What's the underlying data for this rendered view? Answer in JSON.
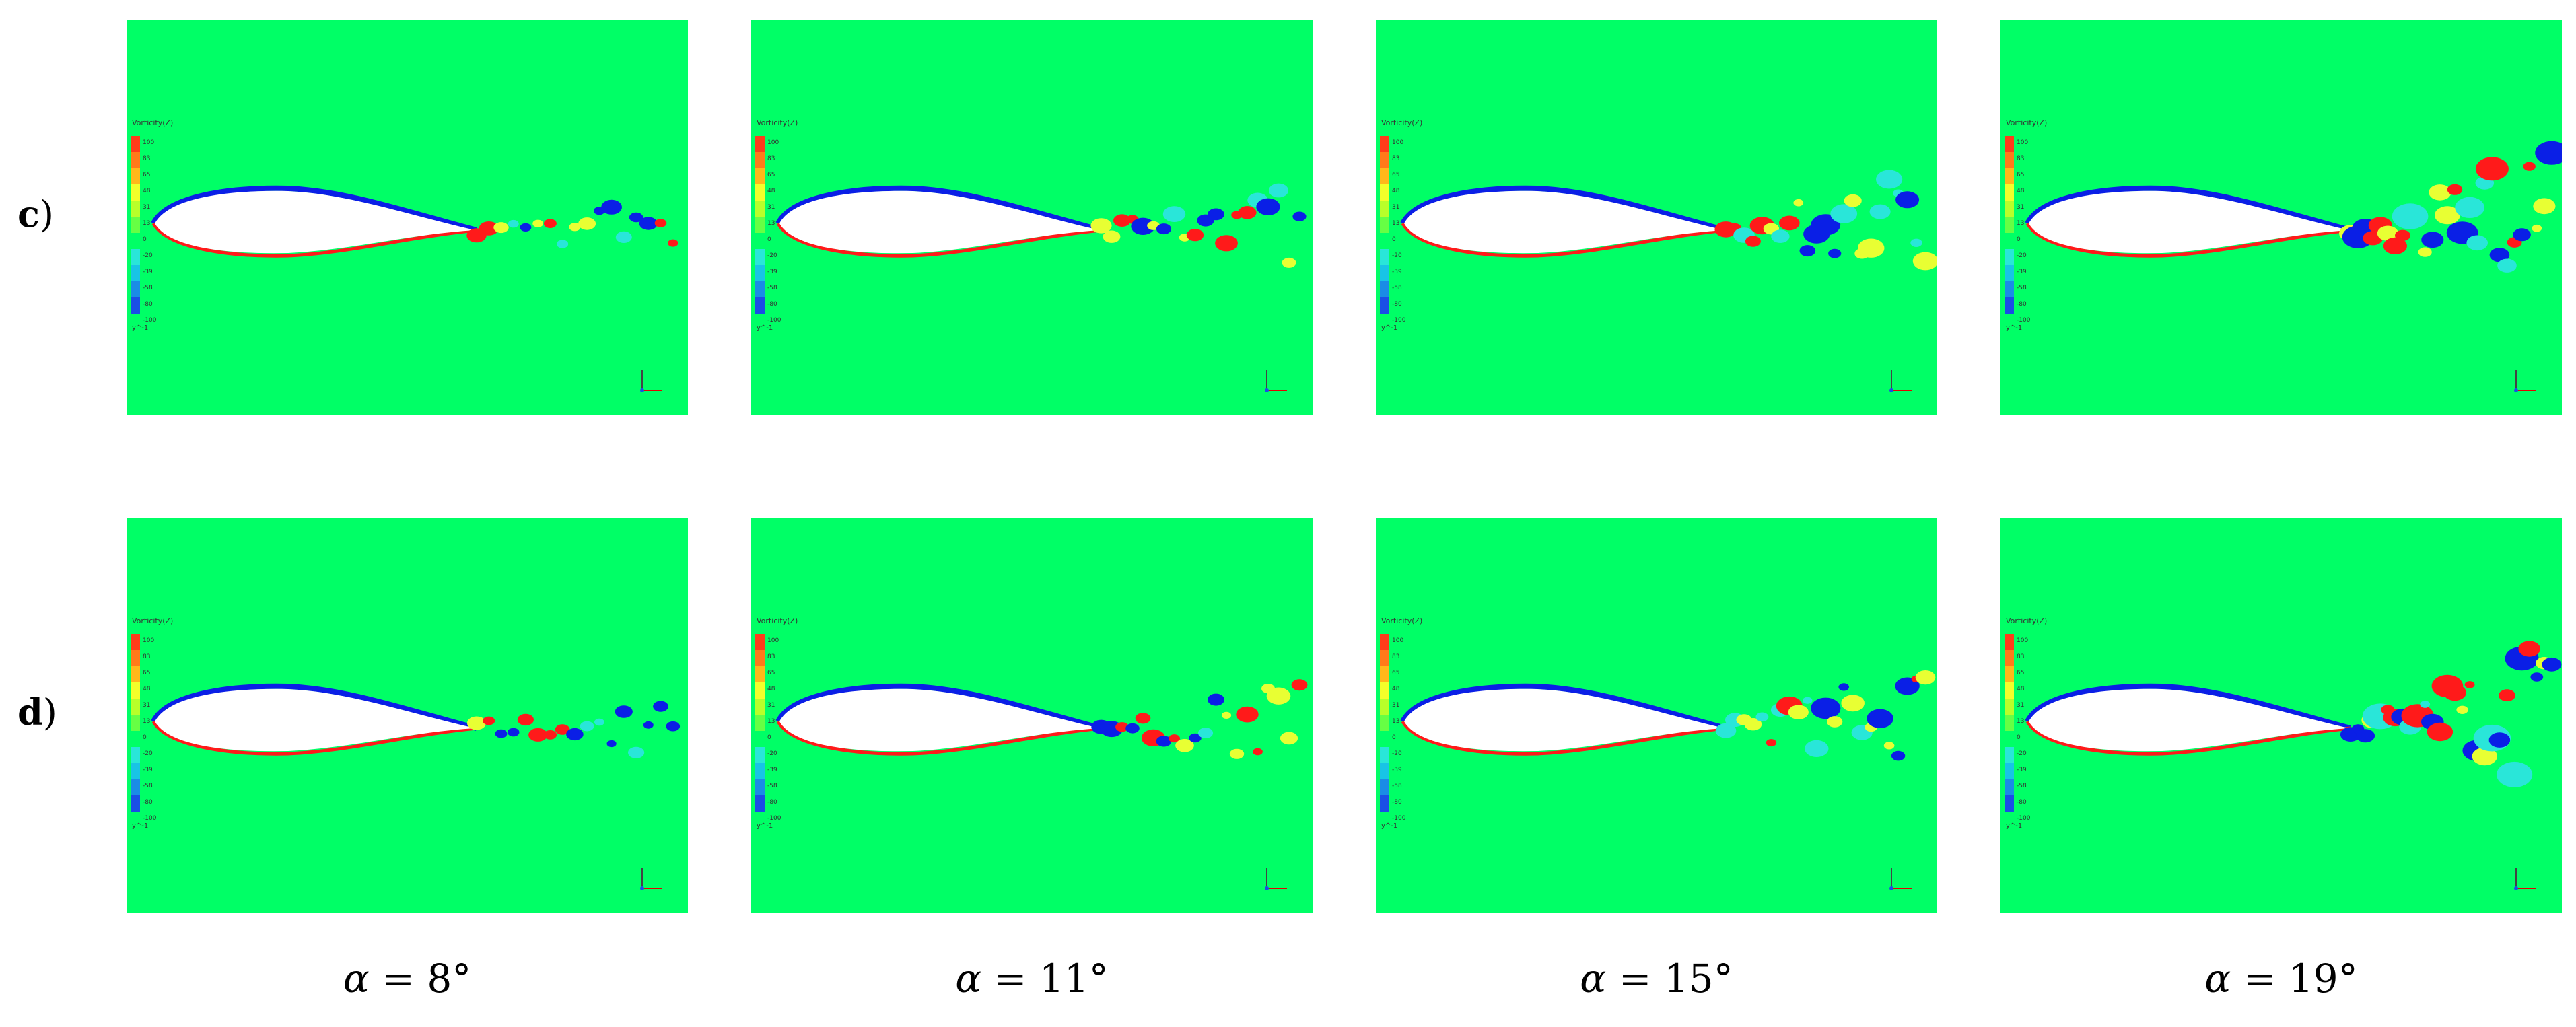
{
  "rows": [
    {
      "label": "c",
      "suffix": ")"
    },
    {
      "label": "d",
      "suffix": ")"
    }
  ],
  "columns": [
    {
      "symbol": "α",
      "rest": " = 8°"
    },
    {
      "symbol": "α",
      "rest": " = 11°"
    },
    {
      "symbol": "α",
      "rest": " = 15°"
    },
    {
      "symbol": "α",
      "rest": " = 19°"
    }
  ],
  "legend": {
    "title": "Vorticity(Z)",
    "ticks": [
      "100",
      "83",
      "65",
      "48",
      "31",
      "13",
      "0",
      "-20",
      "-39",
      "-58",
      "-80",
      "-100"
    ],
    "footer": "y^-1"
  },
  "colors": {
    "background": "#00ff66",
    "airfoil": "#ffffff",
    "positive_vortex": "#ff1a1a",
    "negative_vortex": "#0a1fe6",
    "weak_positive": "#e8ff33",
    "weak_negative": "#29e6d9"
  }
}
